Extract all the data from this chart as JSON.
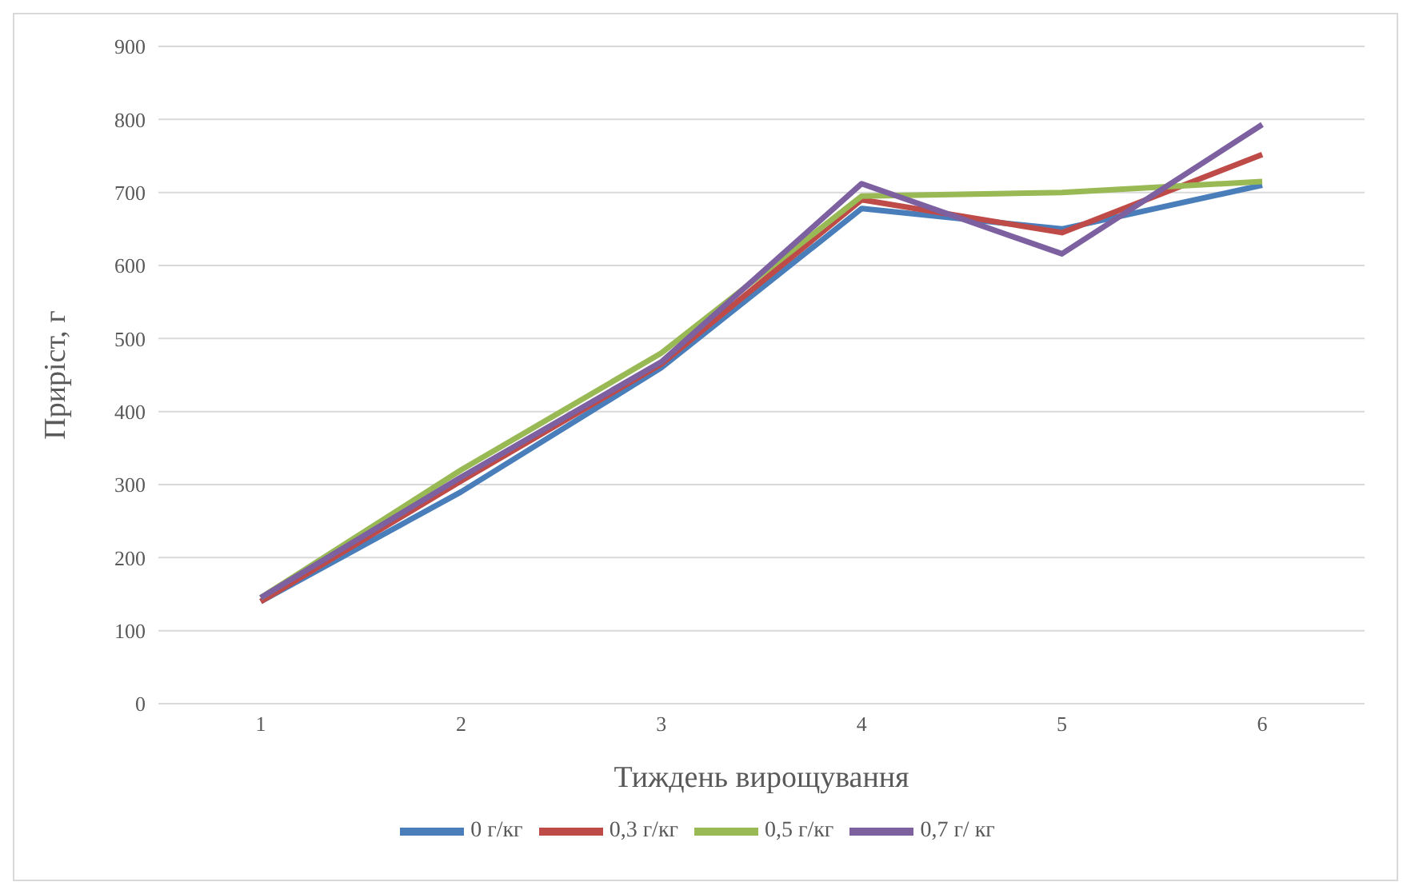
{
  "chart_data": {
    "type": "line",
    "xlabel": "Тиждень вирощування",
    "ylabel": "Приріст, г",
    "categories": [
      "1",
      "2",
      "3",
      "4",
      "5",
      "6"
    ],
    "series": [
      {
        "name": "0 г/кг",
        "color": "#4a7ebb",
        "values": [
          140,
          290,
          460,
          678,
          650,
          710
        ]
      },
      {
        "name": "0,3 г/кг",
        "color": "#be4b48",
        "values": [
          140,
          305,
          465,
          690,
          645,
          752
        ]
      },
      {
        "name": "0,5 г/кг",
        "color": "#98b954",
        "values": [
          145,
          320,
          480,
          695,
          700,
          715
        ]
      },
      {
        "name": "0,7 г/ кг",
        "color": "#7d60a0",
        "values": [
          145,
          310,
          468,
          712,
          616,
          793
        ]
      }
    ],
    "ylim": [
      0,
      900
    ],
    "yticks": [
      0,
      100,
      200,
      300,
      400,
      500,
      600,
      700,
      800,
      900
    ],
    "grid": "y",
    "legend": "bottom",
    "marker": "none",
    "line_style": "solid"
  }
}
